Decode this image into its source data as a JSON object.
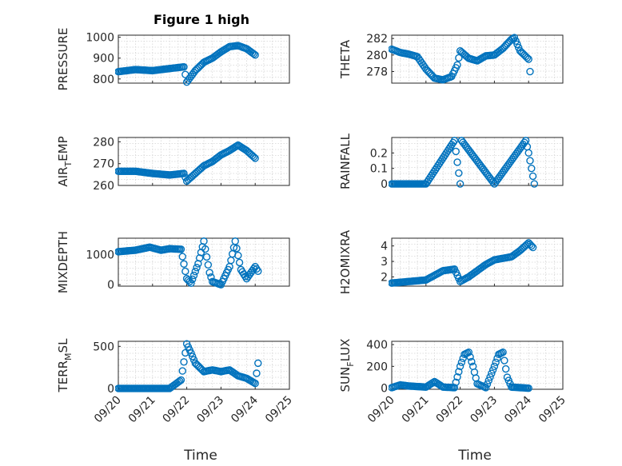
{
  "figure": {
    "title": "Figure 1 high"
  },
  "xlabels": {
    "left": "Time",
    "right": "Time"
  },
  "x_tick_labels": [
    "09/20",
    "09/21",
    "09/22",
    "09/23",
    "09/24",
    "09/25"
  ],
  "colors": {
    "marker": "#0072BD",
    "axis": "#262626",
    "grid": "#d5d5d5"
  },
  "chart_data": [
    {
      "type": "scatter",
      "ylabel": "PRESSURE",
      "ylim": [
        780,
        1010
      ],
      "yticks": [
        800,
        900,
        1000
      ],
      "ytick_labels": [
        "800",
        "900",
        "1000"
      ],
      "x_range": [
        "09/20",
        "09/25"
      ],
      "grid": true,
      "points": [
        [
          "09/20",
          835
        ],
        [
          "09/20 12:00",
          845
        ],
        [
          "09/21",
          840
        ],
        [
          "09/21 12:00",
          850
        ],
        [
          "09/21 22:00",
          858
        ],
        [
          "09/22",
          785
        ],
        [
          "09/22 06:00",
          840
        ],
        [
          "09/22 12:00",
          880
        ],
        [
          "09/22 18:00",
          900
        ],
        [
          "09/23",
          930
        ],
        [
          "09/23 06:00",
          955
        ],
        [
          "09/23 12:00",
          960
        ],
        [
          "09/23 18:00",
          945
        ],
        [
          "09/24",
          915
        ]
      ]
    },
    {
      "type": "scatter",
      "ylabel": "THETA",
      "ylim": [
        276.6,
        282.4
      ],
      "yticks": [
        278,
        280,
        282
      ],
      "ytick_labels": [
        "278",
        "280",
        "282"
      ],
      "x_range": [
        "09/20",
        "09/25"
      ],
      "grid": true,
      "points": [
        [
          "09/20",
          280.7
        ],
        [
          "09/20 06:00",
          280.3
        ],
        [
          "09/20 12:00",
          280.1
        ],
        [
          "09/20 18:00",
          279.8
        ],
        [
          "09/21",
          278.3
        ],
        [
          "09/21 06:00",
          277.2
        ],
        [
          "09/21 12:00",
          277.0
        ],
        [
          "09/21 18:00",
          277.4
        ],
        [
          "09/21 22:00",
          278.8
        ],
        [
          "09/22",
          280.5
        ],
        [
          "09/22 06:00",
          279.6
        ],
        [
          "09/22 12:00",
          279.3
        ],
        [
          "09/22 18:00",
          279.9
        ],
        [
          "09/23",
          280.0
        ],
        [
          "09/23 06:00",
          280.8
        ],
        [
          "09/23 12:00",
          281.9
        ],
        [
          "09/23 14:00",
          282.1
        ],
        [
          "09/23 18:00",
          280.5
        ],
        [
          "09/24",
          279.5
        ],
        [
          "09/24 01:00",
          278.0
        ]
      ]
    },
    {
      "type": "scatter",
      "ylabel": "AIR_TEMP",
      "ylim": [
        260,
        282
      ],
      "yticks": [
        260,
        270,
        280
      ],
      "ytick_labels": [
        "260",
        "270",
        "280"
      ],
      "x_range": [
        "09/20",
        "09/25"
      ],
      "grid": true,
      "points": [
        [
          "09/20",
          266.5
        ],
        [
          "09/20 12:00",
          266.5
        ],
        [
          "09/21",
          265.5
        ],
        [
          "09/21 12:00",
          264.8
        ],
        [
          "09/21 22:00",
          265.5
        ],
        [
          "09/22",
          262.0
        ],
        [
          "09/22 06:00",
          265.5
        ],
        [
          "09/22 12:00",
          269.0
        ],
        [
          "09/22 18:00",
          271.0
        ],
        [
          "09/23",
          274.0
        ],
        [
          "09/23 06:00",
          276.0
        ],
        [
          "09/23 12:00",
          278.5
        ],
        [
          "09/23 18:00",
          276.0
        ],
        [
          "09/24",
          272.5
        ]
      ]
    },
    {
      "type": "scatter",
      "ylabel": "RAINFALL",
      "ylim": [
        -0.01,
        0.3
      ],
      "yticks": [
        0,
        0.1,
        0.2
      ],
      "ytick_labels": [
        "0",
        "0.1",
        "0.2"
      ],
      "x_range": [
        "09/20",
        "09/25"
      ],
      "grid": true,
      "points": [
        [
          "09/20",
          0
        ],
        [
          "09/21",
          0
        ],
        [
          "09/22",
          0
        ],
        [
          "09/21 20:00",
          0.28
        ],
        [
          "09/22 01:00",
          0.28
        ],
        [
          "09/23",
          0
        ],
        [
          "09/23 22:00",
          0.28
        ],
        [
          "09/24",
          0.2
        ],
        [
          "09/24 04:00",
          0
        ]
      ]
    },
    {
      "type": "scatter",
      "ylabel": "MIXDEPTH",
      "ylim": [
        -50,
        1550
      ],
      "yticks": [
        0,
        1000
      ],
      "ytick_labels": [
        "0",
        "1000"
      ],
      "x_range": [
        "09/20",
        "09/25"
      ],
      "grid": true,
      "points": [
        [
          "09/20",
          1100
        ],
        [
          "09/20 12:00",
          1150
        ],
        [
          "09/20 22:00",
          1250
        ],
        [
          "09/21 06:00",
          1150
        ],
        [
          "09/21 12:00",
          1200
        ],
        [
          "09/21 20:00",
          1180
        ],
        [
          "09/22",
          200
        ],
        [
          "09/22 03:00",
          50
        ],
        [
          "09/22 08:00",
          700
        ],
        [
          "09/22 12:00",
          1450
        ],
        [
          "09/22 16:00",
          400
        ],
        [
          "09/22 18:00",
          100
        ],
        [
          "09/23",
          0
        ],
        [
          "09/23 06:00",
          600
        ],
        [
          "09/23 10:00",
          1450
        ],
        [
          "09/23 14:00",
          500
        ],
        [
          "09/23 18:00",
          200
        ],
        [
          "09/24",
          600
        ],
        [
          "09/24 02:00",
          450
        ]
      ]
    },
    {
      "type": "scatter",
      "ylabel": "H2OMIXRA",
      "ylim": [
        1.4,
        4.5
      ],
      "yticks": [
        2,
        3,
        4
      ],
      "ytick_labels": [
        "2",
        "3",
        "4"
      ],
      "x_range": [
        "09/20",
        "09/25"
      ],
      "grid": true,
      "points": [
        [
          "09/20",
          1.6
        ],
        [
          "09/20 12:00",
          1.7
        ],
        [
          "09/21",
          1.8
        ],
        [
          "09/21 06:00",
          2.1
        ],
        [
          "09/21 12:00",
          2.4
        ],
        [
          "09/21 20:00",
          2.5
        ],
        [
          "09/22",
          1.7
        ],
        [
          "09/22 06:00",
          2.0
        ],
        [
          "09/22 12:00",
          2.4
        ],
        [
          "09/22 18:00",
          2.8
        ],
        [
          "09/23",
          3.1
        ],
        [
          "09/23 06:00",
          3.2
        ],
        [
          "09/23 12:00",
          3.3
        ],
        [
          "09/23 18:00",
          3.7
        ],
        [
          "09/24",
          4.2
        ],
        [
          "09/24 03:00",
          3.9
        ]
      ]
    },
    {
      "type": "scatter",
      "ylabel": "TERR_MSL",
      "ylim": [
        -10,
        560
      ],
      "yticks": [
        0,
        500
      ],
      "ytick_labels": [
        "0",
        "500"
      ],
      "x_range": [
        "09/20",
        "09/25"
      ],
      "grid": true,
      "points": [
        [
          "09/20",
          0
        ],
        [
          "09/20 12:00",
          0
        ],
        [
          "09/21",
          0
        ],
        [
          "09/21 12:00",
          0
        ],
        [
          "09/21 20:00",
          100
        ],
        [
          "09/22",
          530
        ],
        [
          "09/22 03:00",
          420
        ],
        [
          "09/22 06:00",
          300
        ],
        [
          "09/22 12:00",
          200
        ],
        [
          "09/22 18:00",
          220
        ],
        [
          "09/23",
          200
        ],
        [
          "09/23 06:00",
          220
        ],
        [
          "09/23 12:00",
          150
        ],
        [
          "09/23 18:00",
          120
        ],
        [
          "09/24",
          60
        ],
        [
          "09/24 02:00",
          300
        ]
      ]
    },
    {
      "type": "scatter",
      "ylabel": "SUN_FLUX",
      "ylim": [
        -10,
        430
      ],
      "yticks": [
        0,
        200,
        400
      ],
      "ytick_labels": [
        "0",
        "200",
        "400"
      ],
      "x_range": [
        "09/20",
        "09/25"
      ],
      "grid": true,
      "points": [
        [
          "09/20",
          5
        ],
        [
          "09/20 06:00",
          30
        ],
        [
          "09/20 12:00",
          20
        ],
        [
          "09/21",
          10
        ],
        [
          "09/21 06:00",
          60
        ],
        [
          "09/21 12:00",
          10
        ],
        [
          "09/21 20:00",
          5
        ],
        [
          "09/22",
          200
        ],
        [
          "09/22 03:00",
          310
        ],
        [
          "09/22 06:00",
          330
        ],
        [
          "09/22 09:00",
          200
        ],
        [
          "09/22 12:00",
          40
        ],
        [
          "09/22 18:00",
          5
        ],
        [
          "09/23",
          200
        ],
        [
          "09/23 03:00",
          310
        ],
        [
          "09/23 06:00",
          330
        ],
        [
          "09/23 09:00",
          100
        ],
        [
          "09/23 12:00",
          10
        ],
        [
          "09/24",
          0
        ]
      ]
    }
  ]
}
